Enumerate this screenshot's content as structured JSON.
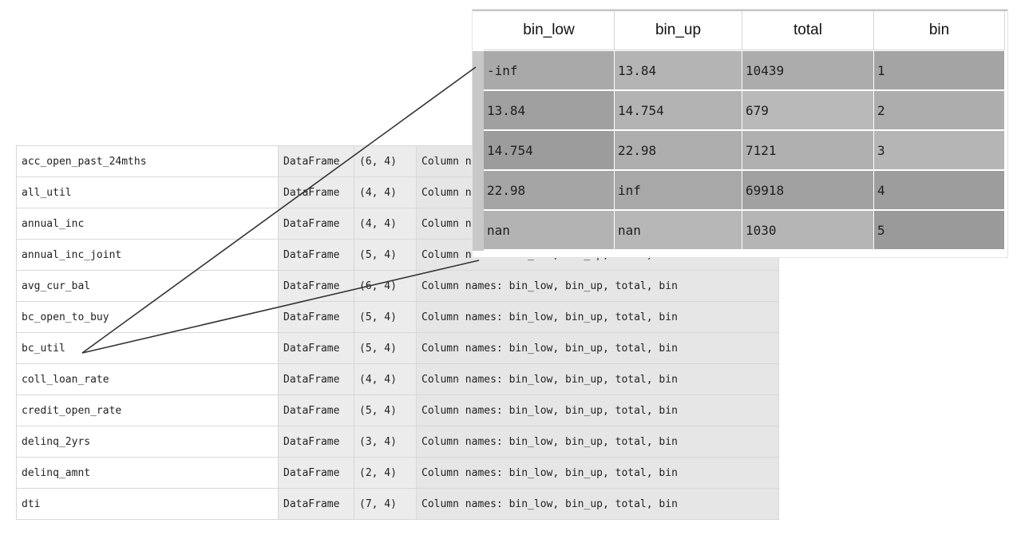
{
  "variables": {
    "rows": [
      {
        "name": "acc_open_past_24mths",
        "type": "DataFrame",
        "size": "(6, 4)",
        "value": "Column names: bin_low, bin_up, total, bin"
      },
      {
        "name": "all_util",
        "type": "DataFrame",
        "size": "(4, 4)",
        "value": "Column names: bin_low, bin_up, total, bin"
      },
      {
        "name": "annual_inc",
        "type": "DataFrame",
        "size": "(4, 4)",
        "value": "Column names: bin_low, bin_up, total, bin"
      },
      {
        "name": "annual_inc_joint",
        "type": "DataFrame",
        "size": "(5, 4)",
        "value": "Column names: bin_low, bin_up, total, bin"
      },
      {
        "name": "avg_cur_bal",
        "type": "DataFrame",
        "size": "(6, 4)",
        "value": "Column names: bin_low, bin_up, total, bin"
      },
      {
        "name": "bc_open_to_buy",
        "type": "DataFrame",
        "size": "(5, 4)",
        "value": "Column names: bin_low, bin_up, total, bin"
      },
      {
        "name": "bc_util",
        "type": "DataFrame",
        "size": "(5, 4)",
        "value": "Column names: bin_low, bin_up, total, bin"
      },
      {
        "name": "coll_loan_rate",
        "type": "DataFrame",
        "size": "(4, 4)",
        "value": "Column names: bin_low, bin_up, total, bin"
      },
      {
        "name": "credit_open_rate",
        "type": "DataFrame",
        "size": "(5, 4)",
        "value": "Column names: bin_low, bin_up, total, bin"
      },
      {
        "name": "delinq_2yrs",
        "type": "DataFrame",
        "size": "(3, 4)",
        "value": "Column names: bin_low, bin_up, total, bin"
      },
      {
        "name": "delinq_amnt",
        "type": "DataFrame",
        "size": "(2, 4)",
        "value": "Column names: bin_low, bin_up, total, bin"
      },
      {
        "name": "dti",
        "type": "DataFrame",
        "size": "(7, 4)",
        "value": "Column names: bin_low, bin_up, total, bin"
      }
    ]
  },
  "popup": {
    "columns": [
      "bin_low",
      "bin_up",
      "total",
      "bin"
    ],
    "rows": [
      {
        "cells": [
          "-inf",
          "13.84",
          "10439",
          "1"
        ],
        "colors": [
          "#a9a9a9",
          "#b4b4b4",
          "#acacac",
          "#a4a4a4"
        ]
      },
      {
        "cells": [
          "13.84",
          "14.754",
          "679",
          "2"
        ],
        "colors": [
          "#a0a0a0",
          "#b3b3b3",
          "#b9b9b9",
          "#adadad"
        ]
      },
      {
        "cells": [
          "14.754",
          "22.98",
          "7121",
          "3"
        ],
        "colors": [
          "#9c9c9c",
          "#aeaeae",
          "#b0b0b0",
          "#b5b5b5"
        ]
      },
      {
        "cells": [
          "22.98",
          "inf",
          "69918",
          "4"
        ],
        "colors": [
          "#a5a5a5",
          "#a8a8a8",
          "#a1a1a1",
          "#9d9d9d"
        ]
      },
      {
        "cells": [
          "nan",
          "nan",
          "1030",
          "5"
        ],
        "colors": [
          "#b3b3b3",
          "#b7b7b7",
          "#b5b5b5",
          "#9a9a9a"
        ]
      }
    ]
  },
  "colors": {
    "connector": "#333333",
    "index_strip": "#c8c8c8"
  }
}
